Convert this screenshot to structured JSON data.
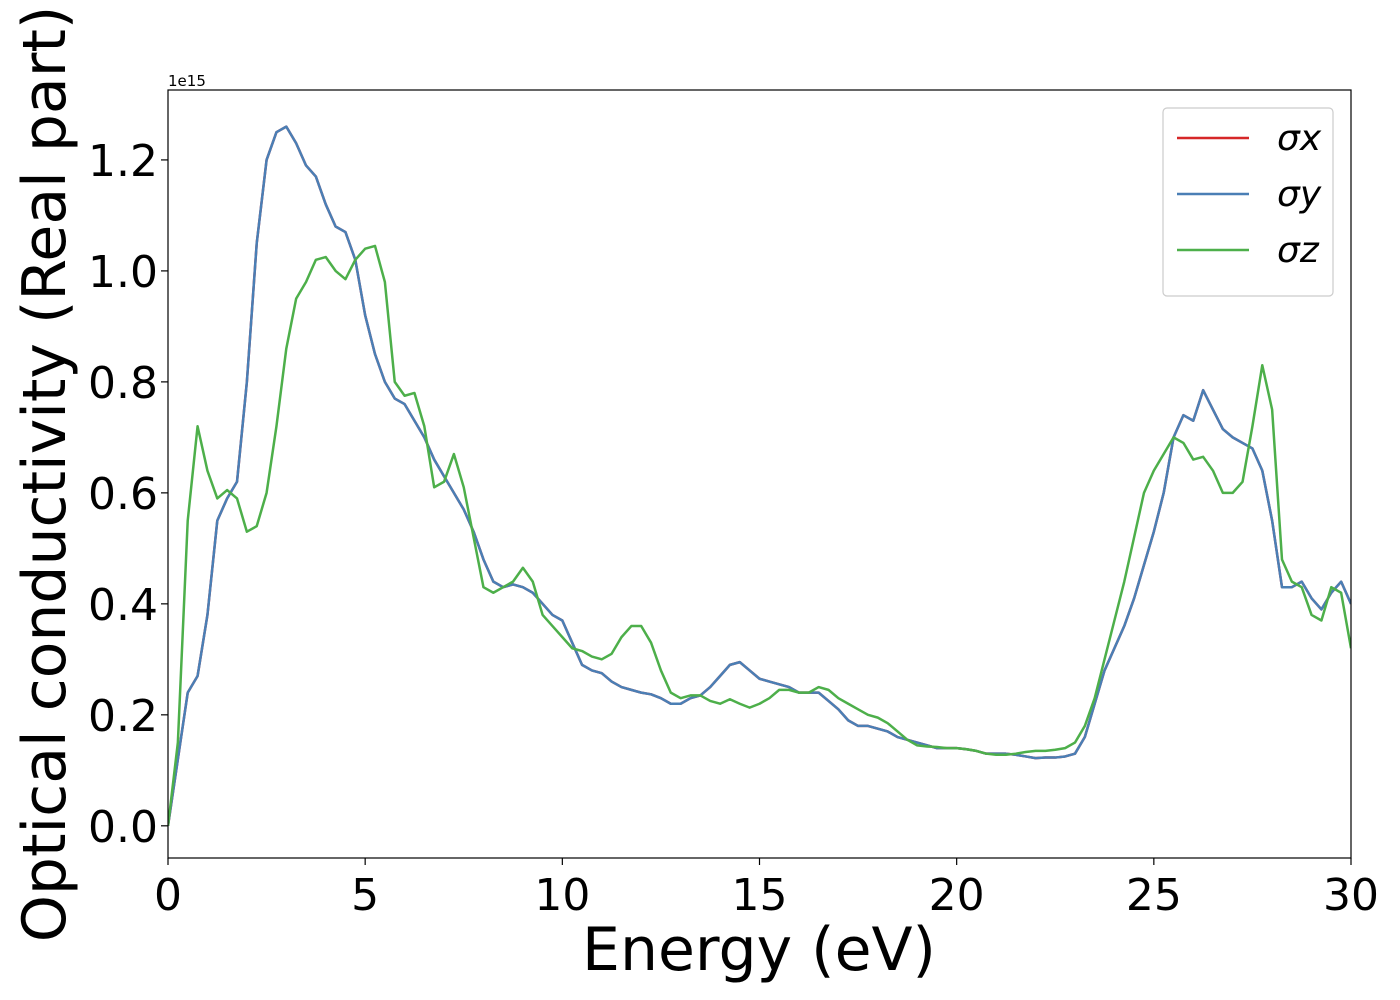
{
  "chart_data": {
    "type": "line",
    "xlabel": "Energy (eV)",
    "ylabel": "Optical conductivity (Real part)",
    "y_offset_label": "1e15",
    "xlim": [
      0,
      30
    ],
    "ylim": [
      -0.058,
      1.326
    ],
    "xticks": [
      0,
      5,
      10,
      15,
      20,
      25,
      30
    ],
    "yticks": [
      {
        "value": 0,
        "label": "0.0"
      },
      {
        "value": 0.2,
        "label": "0.2"
      },
      {
        "value": 0.4,
        "label": "0.4"
      },
      {
        "value": 0.6,
        "label": "0.6"
      },
      {
        "value": 0.8,
        "label": "0.8"
      },
      {
        "value": 1.0,
        "label": "1.0"
      },
      {
        "value": 1.2,
        "label": "1.2"
      }
    ],
    "legend": "upper right",
    "x": [
      0,
      0.25,
      0.5,
      0.75,
      1,
      1.25,
      1.5,
      1.75,
      2,
      2.25,
      2.5,
      2.75,
      3,
      3.25,
      3.5,
      3.75,
      4,
      4.25,
      4.5,
      4.75,
      5,
      5.25,
      5.5,
      5.75,
      6,
      6.25,
      6.5,
      6.75,
      7,
      7.25,
      7.5,
      7.75,
      8,
      8.25,
      8.5,
      8.75,
      9,
      9.25,
      9.5,
      9.75,
      10,
      10.25,
      10.5,
      10.75,
      11,
      11.25,
      11.5,
      11.75,
      12,
      12.25,
      12.5,
      12.75,
      13,
      13.25,
      13.5,
      13.75,
      14,
      14.25,
      14.5,
      14.75,
      15,
      15.25,
      15.5,
      15.75,
      16,
      16.25,
      16.5,
      16.75,
      17,
      17.25,
      17.5,
      17.75,
      18,
      18.25,
      18.5,
      18.75,
      19,
      19.25,
      19.5,
      19.75,
      20,
      20.25,
      20.5,
      20.75,
      21,
      21.25,
      21.5,
      21.75,
      22,
      22.25,
      22.5,
      22.75,
      23,
      23.25,
      23.5,
      23.75,
      24,
      24.25,
      24.5,
      24.75,
      25,
      25.25,
      25.5,
      25.75,
      26,
      26.25,
      26.5,
      26.75,
      27,
      27.25,
      27.5,
      27.75,
      28,
      28.25,
      28.5,
      28.75,
      29,
      29.25,
      29.5,
      29.75,
      30
    ],
    "series": [
      {
        "name": "σx",
        "color": "#d62728",
        "values": [
          0,
          0.12,
          0.24,
          0.27,
          0.38,
          0.55,
          0.59,
          0.62,
          0.8,
          1.05,
          1.2,
          1.25,
          1.26,
          1.23,
          1.19,
          1.17,
          1.12,
          1.08,
          1.07,
          1.02,
          0.92,
          0.85,
          0.8,
          0.77,
          0.76,
          0.73,
          0.7,
          0.66,
          0.63,
          0.6,
          0.57,
          0.53,
          0.48,
          0.44,
          0.43,
          0.435,
          0.43,
          0.42,
          0.4,
          0.38,
          0.37,
          0.33,
          0.29,
          0.28,
          0.275,
          0.26,
          0.25,
          0.245,
          0.24,
          0.237,
          0.23,
          0.22,
          0.22,
          0.23,
          0.235,
          0.25,
          0.27,
          0.29,
          0.295,
          0.28,
          0.265,
          0.26,
          0.255,
          0.25,
          0.24,
          0.24,
          0.24,
          0.225,
          0.21,
          0.19,
          0.18,
          0.18,
          0.175,
          0.17,
          0.16,
          0.155,
          0.15,
          0.145,
          0.14,
          0.14,
          0.14,
          0.138,
          0.135,
          0.13,
          0.13,
          0.13,
          0.128,
          0.125,
          0.122,
          0.123,
          0.123,
          0.125,
          0.13,
          0.16,
          0.22,
          0.28,
          0.32,
          0.36,
          0.41,
          0.47,
          0.53,
          0.6,
          0.7,
          0.74,
          0.73,
          0.785,
          0.75,
          0.715,
          0.7,
          0.69,
          0.68,
          0.64,
          0.55,
          0.43,
          0.43,
          0.44,
          0.41,
          0.39,
          0.42,
          0.44,
          0.4
        ]
      },
      {
        "name": "σy",
        "color": "#4a7fb5",
        "values": [
          0,
          0.12,
          0.24,
          0.27,
          0.38,
          0.55,
          0.59,
          0.62,
          0.8,
          1.05,
          1.2,
          1.25,
          1.26,
          1.23,
          1.19,
          1.17,
          1.12,
          1.08,
          1.07,
          1.02,
          0.92,
          0.85,
          0.8,
          0.77,
          0.76,
          0.73,
          0.7,
          0.66,
          0.63,
          0.6,
          0.57,
          0.53,
          0.48,
          0.44,
          0.43,
          0.435,
          0.43,
          0.42,
          0.4,
          0.38,
          0.37,
          0.33,
          0.29,
          0.28,
          0.275,
          0.26,
          0.25,
          0.245,
          0.24,
          0.237,
          0.23,
          0.22,
          0.22,
          0.23,
          0.235,
          0.25,
          0.27,
          0.29,
          0.295,
          0.28,
          0.265,
          0.26,
          0.255,
          0.25,
          0.24,
          0.24,
          0.24,
          0.225,
          0.21,
          0.19,
          0.18,
          0.18,
          0.175,
          0.17,
          0.16,
          0.155,
          0.15,
          0.145,
          0.14,
          0.14,
          0.14,
          0.138,
          0.135,
          0.13,
          0.13,
          0.13,
          0.128,
          0.125,
          0.122,
          0.123,
          0.123,
          0.125,
          0.13,
          0.16,
          0.22,
          0.28,
          0.32,
          0.36,
          0.41,
          0.47,
          0.53,
          0.6,
          0.7,
          0.74,
          0.73,
          0.785,
          0.75,
          0.715,
          0.7,
          0.69,
          0.68,
          0.64,
          0.55,
          0.43,
          0.43,
          0.44,
          0.41,
          0.39,
          0.42,
          0.44,
          0.4
        ]
      },
      {
        "name": "σz",
        "color": "#4daf4a",
        "values": [
          0,
          0.15,
          0.55,
          0.72,
          0.64,
          0.59,
          0.605,
          0.59,
          0.53,
          0.54,
          0.6,
          0.72,
          0.86,
          0.95,
          0.98,
          1.02,
          1.025,
          1.0,
          0.985,
          1.02,
          1.04,
          1.045,
          0.98,
          0.8,
          0.775,
          0.78,
          0.72,
          0.61,
          0.62,
          0.67,
          0.61,
          0.52,
          0.43,
          0.42,
          0.43,
          0.44,
          0.465,
          0.44,
          0.38,
          0.36,
          0.34,
          0.32,
          0.315,
          0.305,
          0.3,
          0.31,
          0.34,
          0.36,
          0.36,
          0.33,
          0.28,
          0.24,
          0.23,
          0.235,
          0.235,
          0.225,
          0.22,
          0.228,
          0.22,
          0.213,
          0.22,
          0.23,
          0.245,
          0.245,
          0.24,
          0.24,
          0.25,
          0.245,
          0.23,
          0.22,
          0.21,
          0.2,
          0.195,
          0.185,
          0.17,
          0.155,
          0.145,
          0.143,
          0.142,
          0.14,
          0.14,
          0.138,
          0.135,
          0.13,
          0.128,
          0.128,
          0.13,
          0.133,
          0.135,
          0.135,
          0.137,
          0.14,
          0.15,
          0.18,
          0.23,
          0.3,
          0.37,
          0.44,
          0.52,
          0.6,
          0.64,
          0.67,
          0.7,
          0.69,
          0.66,
          0.665,
          0.64,
          0.6,
          0.6,
          0.62,
          0.72,
          0.83,
          0.75,
          0.48,
          0.44,
          0.43,
          0.38,
          0.37,
          0.43,
          0.42,
          0.32
        ]
      }
    ]
  }
}
